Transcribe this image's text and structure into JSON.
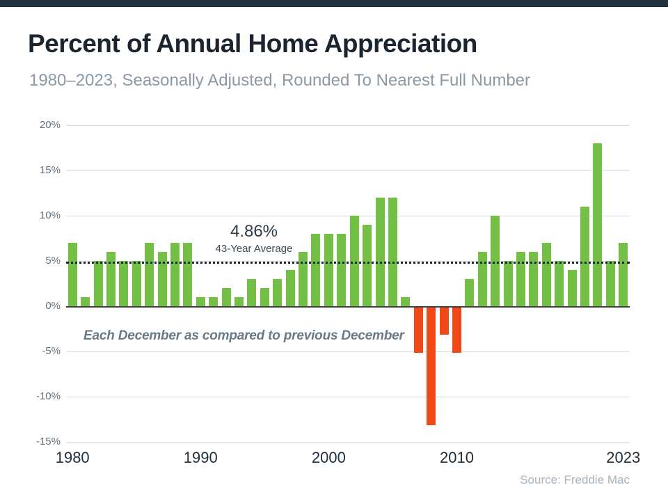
{
  "header": {
    "title": "Percent of Annual Home Appreciation",
    "subtitle": "1980–2023, Seasonally Adjusted, Rounded To Nearest Full Number"
  },
  "chart_data": {
    "type": "bar",
    "title": "Percent of Annual Home Appreciation",
    "subtitle": "1980–2023, Seasonally Adjusted, Rounded To Nearest Full Number",
    "categories": [
      1980,
      1981,
      1982,
      1983,
      1984,
      1985,
      1986,
      1987,
      1988,
      1989,
      1990,
      1991,
      1992,
      1993,
      1994,
      1995,
      1996,
      1997,
      1998,
      1999,
      2000,
      2001,
      2002,
      2003,
      2004,
      2005,
      2006,
      2007,
      2008,
      2009,
      2010,
      2011,
      2012,
      2013,
      2014,
      2015,
      2016,
      2017,
      2018,
      2019,
      2020,
      2021,
      2022,
      2023
    ],
    "values": [
      7,
      1,
      5,
      6,
      5,
      5,
      7,
      6,
      7,
      7,
      1,
      1,
      2,
      1,
      3,
      2,
      3,
      4,
      6,
      8,
      8,
      8,
      10,
      9,
      12,
      12,
      1,
      -5,
      -13,
      -3,
      -5,
      3,
      6,
      10,
      5,
      6,
      6,
      7,
      5,
      4,
      11,
      18,
      5,
      7
    ],
    "ylim": [
      -15,
      20
    ],
    "y_ticks": [
      20,
      15,
      10,
      5,
      0,
      -5,
      -10,
      -15
    ],
    "x_tick_labels": [
      "1980",
      "1990",
      "2000",
      "2010",
      "2023"
    ],
    "grid": true,
    "legend_position": "none",
    "bar_color_positive": "#74BF45",
    "bar_color_negative": "#F1481A",
    "average_line": {
      "value": 4.86,
      "label": "4.86%",
      "sublabel": "43-Year Average",
      "style": "dotted",
      "color": "#1A2733"
    },
    "annotation": "Each December as compared to previous December",
    "source": "Source: Freddie Mac"
  },
  "colors": {
    "top_bar": "#20323F",
    "title_text": "#1C2430",
    "subtitle_text": "#8B99A6",
    "gridline": "#D8DCDE",
    "zero_axis": "#404040",
    "y_labels": "#64727E",
    "x_labels": "#222F3A"
  }
}
